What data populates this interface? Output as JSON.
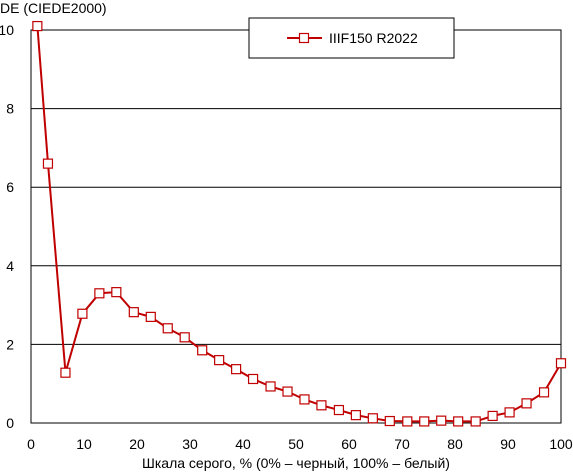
{
  "chart_data": {
    "type": "line",
    "title": "",
    "ylabel": "DE (CIEDE2000)",
    "xlabel": "Шкала серого, % (0% – черный, 100% – белый)",
    "xlim": [
      0,
      100
    ],
    "ylim": [
      0,
      10
    ],
    "xticks": [
      0,
      10,
      20,
      30,
      40,
      50,
      60,
      70,
      80,
      90,
      100
    ],
    "yticks": [
      0,
      2,
      4,
      6,
      8,
      10
    ],
    "grid": "horizontal",
    "legend_position": "top-center",
    "colors": {
      "series": "#c00000",
      "marker_fill": "#ffffff",
      "grid": "#000000"
    },
    "series": [
      {
        "name": "IIIF150 R2022",
        "marker": "square",
        "x": [
          1.2,
          3.2,
          6.5,
          9.7,
          12.9,
          16.1,
          19.4,
          22.6,
          25.8,
          29.0,
          32.3,
          35.5,
          38.7,
          41.9,
          45.2,
          48.4,
          51.6,
          54.8,
          58.1,
          61.3,
          64.5,
          67.7,
          71.0,
          74.2,
          77.4,
          80.6,
          83.9,
          87.1,
          90.3,
          93.5,
          96.8,
          100
        ],
        "values": [
          10.1,
          6.6,
          1.28,
          2.78,
          3.3,
          3.33,
          2.82,
          2.7,
          2.41,
          2.18,
          1.85,
          1.6,
          1.37,
          1.12,
          0.93,
          0.8,
          0.6,
          0.45,
          0.33,
          0.2,
          0.12,
          0.05,
          0.04,
          0.04,
          0.06,
          0.04,
          0.04,
          0.18,
          0.27,
          0.5,
          0.78,
          1.52
        ]
      }
    ]
  }
}
